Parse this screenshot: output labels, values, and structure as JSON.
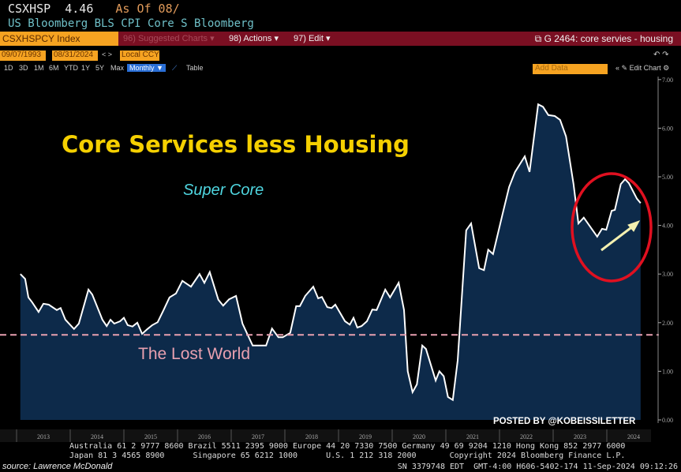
{
  "header": {
    "ticker": "CSXHSP",
    "last": "4.46",
    "as_of": "As Of 08/",
    "description": "US Bloomberg BLS CPI Core S Bloomberg"
  },
  "toolbar": {
    "security": "CSXHSPCY Index",
    "suggested": "96) Suggested Charts ▾",
    "actions": "98) Actions ▾",
    "edit": "97) Edit ▾",
    "chart_name": "G 2464: core servies - housing",
    "start_date": "09/07/1993",
    "end_date": "08/31/2024",
    "currency": "Local CCY",
    "periods": [
      "1D",
      "3D",
      "1M",
      "6M",
      "YTD",
      "1Y",
      "5Y",
      "Max"
    ],
    "frequency": "Monthly ▼",
    "table": "Table",
    "add_data": "Add Data",
    "edit_chart": "Edit Chart"
  },
  "footer": {
    "line1": "Australia 61 2 9777 8600 Brazil 5511 2395 9000 Europe 44 20 7330 7500 Germany 49 69 9204 1210 Hong Kong 852 2977 6000",
    "line2": "Japan 81 3 4565 8900      Singapore 65 6212 1000      U.S. 1 212 318 2000       Copyright 2024 Bloomberg Finance L.P.",
    "sn": "SN 3379748 EDT  GMT-4:00 H606-5402-174 11-Sep-2024 09:12:26",
    "source": "source: Lawrence McDonald"
  },
  "colors": {
    "line": "#ffffff",
    "fill": "#0d2a4a",
    "title": "#f5d000",
    "subtitle": "#4fd6e0",
    "reference": "#e8a0b0",
    "circle": "#e01020",
    "arrow": "#f4f0b0"
  },
  "chart_data": {
    "type": "area",
    "title": "Core Services less Housing",
    "subtitle": "Super Core",
    "annotation": "The Lost World",
    "watermark": "POSTED BY @KOBEISSILETTER",
    "reference_line": 1.75,
    "ylim": [
      0,
      7
    ],
    "xlim": [
      2013,
      2024.85
    ],
    "yticks": [
      "0.00",
      "1.00",
      "2.00",
      "3.00",
      "4.00",
      "5.00",
      "6.00",
      "7.00"
    ],
    "xticks": [
      "2013",
      "2014",
      "2015",
      "2016",
      "2017",
      "2018",
      "2019",
      "2020",
      "2021",
      "2022",
      "2023",
      "2024"
    ],
    "x": [
      2013.07,
      2013.16,
      2013.22,
      2013.29,
      2013.41,
      2013.5,
      2013.6,
      2013.75,
      2013.82,
      2013.91,
      2014.07,
      2014.16,
      2014.34,
      2014.41,
      2014.6,
      2014.68,
      2014.75,
      2014.82,
      2014.93,
      2015.0,
      2015.07,
      2015.16,
      2015.25,
      2015.34,
      2015.44,
      2015.53,
      2015.63,
      2015.74,
      2015.85,
      2015.97,
      2016.09,
      2016.25,
      2016.41,
      2016.5,
      2016.6,
      2016.76,
      2016.85,
      2016.96,
      2017.09,
      2017.21,
      2017.4,
      2017.65,
      2017.76,
      2017.88,
      2017.96,
      2018.1,
      2018.21,
      2018.28,
      2018.38,
      2018.53,
      2018.62,
      2018.69,
      2018.79,
      2018.87,
      2018.94,
      2019.12,
      2019.21,
      2019.28,
      2019.35,
      2019.43,
      2019.53,
      2019.63,
      2019.71,
      2019.87,
      2019.96,
      2020.12,
      2020.22,
      2020.29,
      2020.38,
      2020.46,
      2020.56,
      2020.63,
      2020.81,
      2020.88,
      2020.96,
      2021.04,
      2021.13,
      2021.22,
      2021.38,
      2021.47,
      2021.62,
      2021.71,
      2021.79,
      2021.88,
      2022.06,
      2022.18,
      2022.29,
      2022.47,
      2022.56,
      2022.72,
      2022.81,
      2022.91,
      2023.03,
      2023.13,
      2023.24,
      2023.38,
      2023.47,
      2023.57,
      2023.82,
      2023.91,
      2023.99,
      2024.09,
      2024.15,
      2024.26,
      2024.34,
      2024.41,
      2024.56,
      2024.63
    ],
    "y": [
      3.0,
      2.9,
      2.52,
      2.42,
      2.22,
      2.39,
      2.37,
      2.26,
      2.3,
      2.06,
      1.87,
      1.98,
      2.68,
      2.58,
      2.06,
      1.93,
      2.06,
      1.98,
      2.03,
      2.1,
      1.95,
      1.92,
      2.0,
      1.77,
      1.87,
      1.95,
      2.01,
      2.26,
      2.52,
      2.6,
      2.86,
      2.74,
      3.0,
      2.82,
      3.04,
      2.47,
      2.35,
      2.48,
      2.55,
      1.98,
      1.53,
      1.53,
      1.88,
      1.7,
      1.7,
      1.79,
      2.34,
      2.34,
      2.55,
      2.74,
      2.5,
      2.53,
      2.32,
      2.3,
      2.37,
      2.03,
      1.96,
      2.1,
      1.9,
      1.93,
      2.03,
      2.27,
      2.26,
      2.68,
      2.52,
      2.82,
      2.26,
      1.0,
      0.57,
      0.73,
      1.53,
      1.46,
      0.81,
      1.0,
      0.9,
      0.47,
      0.41,
      1.22,
      3.9,
      4.04,
      3.12,
      3.08,
      3.5,
      3.41,
      4.25,
      4.79,
      5.1,
      5.42,
      5.1,
      6.49,
      6.44,
      6.27,
      6.25,
      6.17,
      5.83,
      4.85,
      4.04,
      4.16,
      3.77,
      3.93,
      3.91,
      4.3,
      4.32,
      4.85,
      4.95,
      4.87,
      4.55,
      4.46
    ]
  }
}
